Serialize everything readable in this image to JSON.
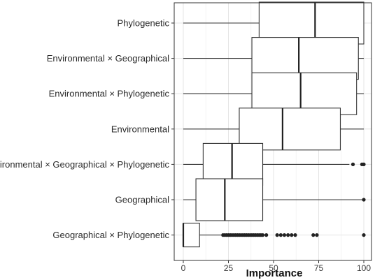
{
  "chart_data": {
    "type": "boxplot",
    "orientation": "horizontal",
    "xlabel": "Importance",
    "ylabel": "",
    "xlim": [
      0,
      100
    ],
    "xticks": [
      0,
      25,
      50,
      75,
      100
    ],
    "xtick_labels": [
      "0",
      "25",
      "50",
      "75",
      "100"
    ],
    "grid": true,
    "categories": [
      "Phylogenetic",
      "Environmental × Geographical",
      "Environmental × Phylogenetic",
      "Environmental",
      "Environmental × Geographical × Phylogenetic",
      "Geographical",
      "Geographical × Phylogenetic"
    ],
    "boxes": [
      {
        "category": "Phylogenetic",
        "whisker_low": 0,
        "q1": 42,
        "median": 73,
        "q3": 100,
        "whisker_high": 100,
        "outliers": []
      },
      {
        "category": "Environmental × Geographical",
        "whisker_low": 0,
        "q1": 38,
        "median": 64,
        "q3": 97,
        "whisker_high": 100,
        "outliers": []
      },
      {
        "category": "Environmental × Phylogenetic",
        "whisker_low": 0,
        "q1": 38,
        "median": 65,
        "q3": 96,
        "whisker_high": 100,
        "outliers": []
      },
      {
        "category": "Environmental",
        "whisker_low": 0,
        "q1": 31,
        "median": 55,
        "q3": 87,
        "whisker_high": 100,
        "outliers": []
      },
      {
        "category": "Environmental × Geographical × Phylogenetic",
        "whisker_low": 0,
        "q1": 11,
        "median": 27,
        "q3": 44,
        "whisker_high": 92,
        "outliers": [
          94,
          99,
          100
        ]
      },
      {
        "category": "Geographical",
        "whisker_low": 0,
        "q1": 7,
        "median": 23,
        "q3": 44,
        "whisker_high": 99,
        "outliers": [
          100
        ]
      },
      {
        "category": "Geographical × Phylogenetic",
        "whisker_low": 0,
        "q1": 0,
        "median": 0,
        "q3": 9,
        "whisker_high": 21,
        "outliers": [
          22,
          23,
          24,
          25,
          26,
          27,
          28,
          29,
          30,
          31,
          32,
          33,
          34,
          35,
          36,
          37,
          38,
          39,
          40,
          41,
          42,
          43,
          44,
          46,
          52,
          54,
          56,
          58,
          60,
          62,
          72,
          74,
          100
        ]
      }
    ]
  }
}
